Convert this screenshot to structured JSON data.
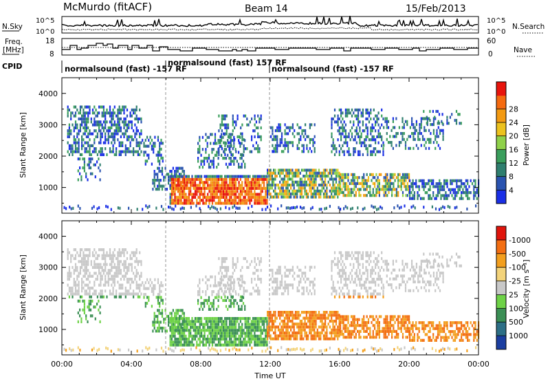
{
  "header": {
    "site": "McMurdo (fitACF)",
    "beam": "Beam 14",
    "date": "15/Feb/2013"
  },
  "left_labels": {
    "nsky": "N.Sky",
    "freq_line1": "Freq.",
    "freq_line2": "[MHz]",
    "cpid": "CPID"
  },
  "right_labels": {
    "nsearch": "N.Search",
    "nave": "Nave"
  },
  "noise_panel": {
    "left_ticks": [
      "10^5",
      "10^0"
    ],
    "right_ticks": [
      "10^5",
      "10^0"
    ]
  },
  "freq_panel": {
    "left_ticks": [
      "18",
      "8"
    ],
    "right_ticks": [
      "60",
      "0"
    ]
  },
  "cpid_segments": [
    {
      "label": "normalsound (fast) -157 RF"
    },
    {
      "label": "normalsound (fast) 157 RF"
    },
    {
      "label": "normalsound (fast) -157 RF"
    }
  ],
  "chart_data": [
    {
      "type": "heatmap",
      "name": "power-panel",
      "ylabel": "Slant Range [km]",
      "yticks": [
        "1000",
        "2000",
        "3000",
        "4000"
      ],
      "ylim": [
        180,
        4500
      ],
      "xlim": [
        0,
        24
      ],
      "colorbar_label": "Power [dB]",
      "colorbar_ticks": [
        "4",
        "8",
        "12",
        "16",
        "20",
        "24",
        "28"
      ],
      "colorbar_colors": [
        "#1a2fe6",
        "#2a53b0",
        "#2f7f6f",
        "#3a9e5c",
        "#8fd14a",
        "#ecc21e",
        "#f39a12",
        "#f56a0f",
        "#e8140c"
      ]
    },
    {
      "type": "heatmap",
      "name": "velocity-panel",
      "ylabel": "Slant Range [km]",
      "yticks": [
        "1000",
        "2000",
        "3000",
        "4000"
      ],
      "ylim": [
        180,
        4500
      ],
      "xlim": [
        0,
        24
      ],
      "xlabel": "Time UT",
      "xticks": [
        "00:00",
        "04:00",
        "08:00",
        "12:00",
        "16:00",
        "20:00",
        "00:00"
      ],
      "colorbar_label": "Velocity [m s⁻¹]",
      "colorbar_ticks": [
        "1000",
        "500",
        "100",
        "25",
        "-25",
        "-100",
        "-500",
        "-1000"
      ],
      "colorbar_colors": [
        "#1b3ea0",
        "#2d6f86",
        "#3b8f55",
        "#6ed247",
        "#c8c8c8",
        "#f3d37a",
        "#f39f1e",
        "#f36e12",
        "#e0140c"
      ]
    }
  ]
}
